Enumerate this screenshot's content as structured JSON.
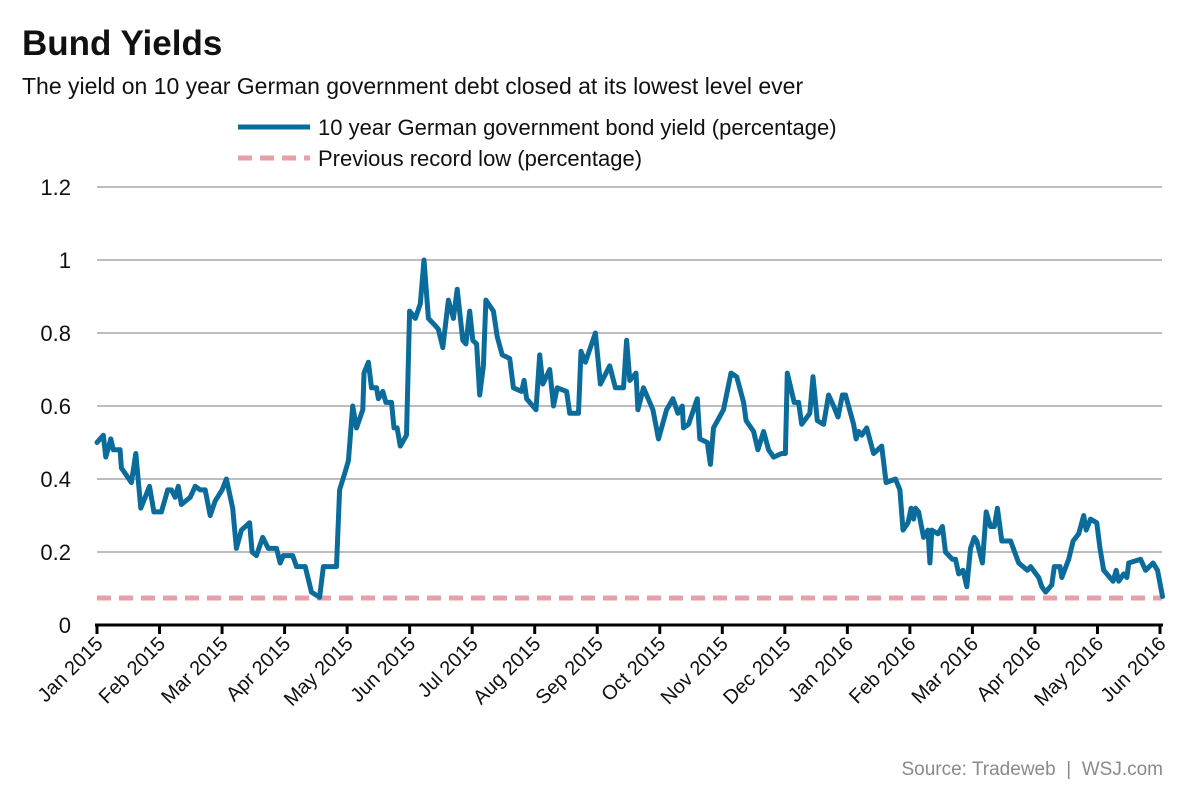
{
  "chart_data": {
    "type": "line",
    "title": "Bund Yields",
    "subtitle": "The yield on 10 year German government debt closed at its lowest level ever",
    "source": "Source: Tradeweb  |  WSJ.com",
    "xlabel": "",
    "ylabel": "",
    "ylim": [
      0,
      1.2
    ],
    "yticks": [
      "0",
      "0.2",
      "0.4",
      "0.6",
      "0.8",
      "1",
      "1.2"
    ],
    "ytick_values": [
      0,
      0.2,
      0.4,
      0.6,
      0.8,
      1.0,
      1.2
    ],
    "grid": true,
    "x_unit": "months since Jan 2015",
    "xlim": [
      0,
      17.04
    ],
    "xticks": [
      "Jan 2015",
      "Feb 2015",
      "Mar 2015",
      "Apr 2015",
      "May 2015",
      "Jun 2015",
      "Jul 2015",
      "Aug 2015",
      "Sep 2015",
      "Oct 2015",
      "Nov 2015",
      "Dec 2015",
      "Jan 2016",
      "Feb 2016",
      "Mar 2016",
      "Apr 2016",
      "May 2016",
      "Jun 2016"
    ],
    "legend_placement": "top-center",
    "series": [
      {
        "name": "10 year German government bond yield (percentage)",
        "color": "#0b6b9b",
        "style": "solid",
        "points": [
          [
            0,
            0.5
          ],
          [
            0.1,
            0.52
          ],
          [
            0.14,
            0.46
          ],
          [
            0.22,
            0.51
          ],
          [
            0.26,
            0.48
          ],
          [
            0.37,
            0.48
          ],
          [
            0.39,
            0.43
          ],
          [
            0.55,
            0.39
          ],
          [
            0.62,
            0.47
          ],
          [
            0.7,
            0.32
          ],
          [
            0.84,
            0.38
          ],
          [
            0.91,
            0.31
          ],
          [
            1.03,
            0.31
          ],
          [
            1.13,
            0.37
          ],
          [
            1.19,
            0.37
          ],
          [
            1.25,
            0.35
          ],
          [
            1.3,
            0.38
          ],
          [
            1.35,
            0.33
          ],
          [
            1.49,
            0.35
          ],
          [
            1.57,
            0.38
          ],
          [
            1.65,
            0.37
          ],
          [
            1.73,
            0.37
          ],
          [
            1.81,
            0.3
          ],
          [
            1.89,
            0.34
          ],
          [
            2.0,
            0.37
          ],
          [
            2.07,
            0.4
          ],
          [
            2.17,
            0.32
          ],
          [
            2.23,
            0.21
          ],
          [
            2.31,
            0.26
          ],
          [
            2.44,
            0.28
          ],
          [
            2.48,
            0.2
          ],
          [
            2.55,
            0.19
          ],
          [
            2.65,
            0.24
          ],
          [
            2.74,
            0.21
          ],
          [
            2.87,
            0.21
          ],
          [
            2.93,
            0.17
          ],
          [
            2.98,
            0.19
          ],
          [
            3.13,
            0.19
          ],
          [
            3.19,
            0.16
          ],
          [
            3.33,
            0.16
          ],
          [
            3.43,
            0.09
          ],
          [
            3.56,
            0.076
          ],
          [
            3.62,
            0.16
          ],
          [
            3.73,
            0.16
          ],
          [
            3.83,
            0.16
          ],
          [
            3.88,
            0.37
          ],
          [
            3.97,
            0.42
          ],
          [
            4.02,
            0.45
          ],
          [
            4.09,
            0.6
          ],
          [
            4.15,
            0.54
          ],
          [
            4.25,
            0.59
          ],
          [
            4.27,
            0.69
          ],
          [
            4.34,
            0.72
          ],
          [
            4.39,
            0.65
          ],
          [
            4.47,
            0.65
          ],
          [
            4.5,
            0.62
          ],
          [
            4.57,
            0.64
          ],
          [
            4.62,
            0.61
          ],
          [
            4.71,
            0.61
          ],
          [
            4.75,
            0.54
          ],
          [
            4.8,
            0.54
          ],
          [
            4.85,
            0.49
          ],
          [
            4.95,
            0.52
          ],
          [
            5.0,
            0.86
          ],
          [
            5.09,
            0.84
          ],
          [
            5.17,
            0.88
          ],
          [
            5.23,
            1.0
          ],
          [
            5.3,
            0.84
          ],
          [
            5.41,
            0.82
          ],
          [
            5.46,
            0.81
          ],
          [
            5.53,
            0.76
          ],
          [
            5.62,
            0.89
          ],
          [
            5.7,
            0.84
          ],
          [
            5.76,
            0.92
          ],
          [
            5.85,
            0.78
          ],
          [
            5.9,
            0.77
          ],
          [
            5.96,
            0.86
          ],
          [
            6.01,
            0.78
          ],
          [
            6.07,
            0.77
          ],
          [
            6.12,
            0.63
          ],
          [
            6.18,
            0.71
          ],
          [
            6.22,
            0.89
          ],
          [
            6.34,
            0.86
          ],
          [
            6.4,
            0.79
          ],
          [
            6.48,
            0.74
          ],
          [
            6.6,
            0.73
          ],
          [
            6.66,
            0.65
          ],
          [
            6.79,
            0.64
          ],
          [
            6.83,
            0.67
          ],
          [
            6.87,
            0.62
          ],
          [
            7.02,
            0.59
          ],
          [
            7.08,
            0.74
          ],
          [
            7.13,
            0.66
          ],
          [
            7.24,
            0.7
          ],
          [
            7.3,
            0.6
          ],
          [
            7.36,
            0.65
          ],
          [
            7.51,
            0.64
          ],
          [
            7.56,
            0.58
          ],
          [
            7.7,
            0.58
          ],
          [
            7.74,
            0.75
          ],
          [
            7.81,
            0.72
          ],
          [
            7.97,
            0.8
          ],
          [
            8.05,
            0.66
          ],
          [
            8.2,
            0.71
          ],
          [
            8.29,
            0.65
          ],
          [
            8.42,
            0.65
          ],
          [
            8.47,
            0.78
          ],
          [
            8.52,
            0.67
          ],
          [
            8.62,
            0.69
          ],
          [
            8.65,
            0.59
          ],
          [
            8.74,
            0.65
          ],
          [
            8.89,
            0.59
          ],
          [
            8.98,
            0.51
          ],
          [
            9.11,
            0.59
          ],
          [
            9.21,
            0.62
          ],
          [
            9.29,
            0.58
          ],
          [
            9.36,
            0.6
          ],
          [
            9.38,
            0.54
          ],
          [
            9.46,
            0.55
          ],
          [
            9.6,
            0.62
          ],
          [
            9.64,
            0.51
          ],
          [
            9.76,
            0.5
          ],
          [
            9.81,
            0.44
          ],
          [
            9.86,
            0.54
          ],
          [
            10.02,
            0.59
          ],
          [
            10.14,
            0.69
          ],
          [
            10.23,
            0.68
          ],
          [
            10.34,
            0.61
          ],
          [
            10.38,
            0.56
          ],
          [
            10.5,
            0.53
          ],
          [
            10.57,
            0.48
          ],
          [
            10.66,
            0.53
          ],
          [
            10.74,
            0.48
          ],
          [
            10.82,
            0.46
          ],
          [
            10.95,
            0.47
          ],
          [
            11.01,
            0.47
          ],
          [
            11.04,
            0.69
          ],
          [
            11.15,
            0.61
          ],
          [
            11.22,
            0.61
          ],
          [
            11.27,
            0.55
          ],
          [
            11.4,
            0.58
          ],
          [
            11.45,
            0.68
          ],
          [
            11.52,
            0.56
          ],
          [
            11.62,
            0.55
          ],
          [
            11.7,
            0.63
          ],
          [
            11.78,
            0.6
          ],
          [
            11.85,
            0.57
          ],
          [
            11.92,
            0.63
          ],
          [
            11.97,
            0.63
          ],
          [
            12.1,
            0.55
          ],
          [
            12.14,
            0.51
          ],
          [
            12.18,
            0.53
          ],
          [
            12.23,
            0.52
          ],
          [
            12.31,
            0.54
          ],
          [
            12.42,
            0.47
          ],
          [
            12.55,
            0.49
          ],
          [
            12.62,
            0.39
          ],
          [
            12.77,
            0.4
          ],
          [
            12.84,
            0.37
          ],
          [
            12.89,
            0.26
          ],
          [
            12.97,
            0.28
          ],
          [
            13.02,
            0.32
          ],
          [
            13.06,
            0.29
          ],
          [
            13.09,
            0.32
          ],
          [
            13.14,
            0.31
          ],
          [
            13.22,
            0.24
          ],
          [
            13.29,
            0.26
          ],
          [
            13.32,
            0.17
          ],
          [
            13.35,
            0.26
          ],
          [
            13.45,
            0.25
          ],
          [
            13.52,
            0.27
          ],
          [
            13.57,
            0.2
          ],
          [
            13.68,
            0.18
          ],
          [
            13.73,
            0.18
          ],
          [
            13.78,
            0.14
          ],
          [
            13.85,
            0.15
          ],
          [
            13.91,
            0.105
          ],
          [
            13.97,
            0.21
          ],
          [
            14.03,
            0.24
          ],
          [
            14.07,
            0.23
          ],
          [
            14.16,
            0.17
          ],
          [
            14.22,
            0.31
          ],
          [
            14.29,
            0.27
          ],
          [
            14.35,
            0.27
          ],
          [
            14.4,
            0.32
          ],
          [
            14.47,
            0.23
          ],
          [
            14.61,
            0.23
          ],
          [
            14.74,
            0.17
          ],
          [
            14.88,
            0.15
          ],
          [
            14.93,
            0.16
          ],
          [
            15.06,
            0.13
          ],
          [
            15.11,
            0.105
          ],
          [
            15.17,
            0.09
          ],
          [
            15.27,
            0.11
          ],
          [
            15.31,
            0.16
          ],
          [
            15.4,
            0.16
          ],
          [
            15.43,
            0.13
          ],
          [
            15.54,
            0.18
          ],
          [
            15.61,
            0.23
          ],
          [
            15.7,
            0.25
          ],
          [
            15.78,
            0.3
          ],
          [
            15.82,
            0.26
          ],
          [
            15.89,
            0.29
          ],
          [
            15.99,
            0.28
          ],
          [
            16.04,
            0.21
          ],
          [
            16.1,
            0.15
          ],
          [
            16.25,
            0.12
          ],
          [
            16.3,
            0.15
          ],
          [
            16.34,
            0.12
          ],
          [
            16.42,
            0.14
          ],
          [
            16.47,
            0.13
          ],
          [
            16.5,
            0.17
          ],
          [
            16.69,
            0.18
          ],
          [
            16.77,
            0.15
          ],
          [
            16.89,
            0.17
          ],
          [
            16.96,
            0.15
          ],
          [
            17.04,
            0.078
          ]
        ]
      },
      {
        "name": "Previous record low (percentage)",
        "color": "#e8a0a8",
        "style": "dashed",
        "value": 0.074
      }
    ]
  }
}
